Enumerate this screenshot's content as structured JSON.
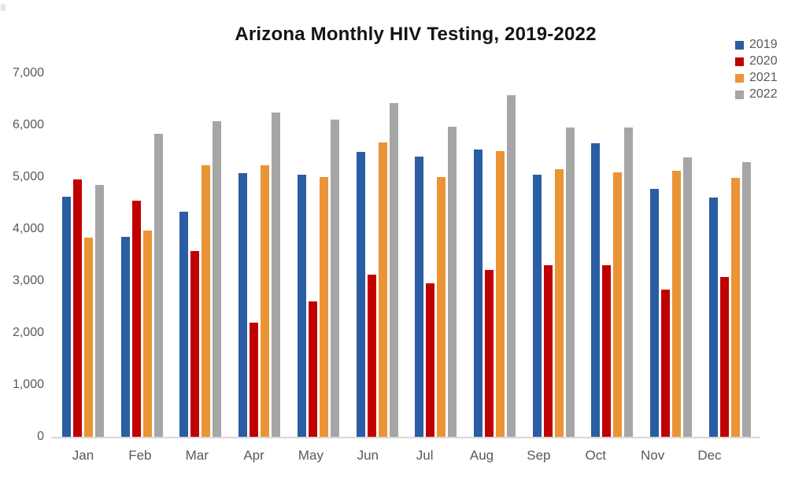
{
  "chart_data": {
    "type": "bar",
    "title": "Arizona Monthly HIV Testing, 2019-2022",
    "categories": [
      "Jan",
      "Feb",
      "Mar",
      "Apr",
      "May",
      "Jun",
      "Jul",
      "Aug",
      "Sep",
      "Oct",
      "Nov",
      "Dec"
    ],
    "series": [
      {
        "name": "2019",
        "color": "#2A5DA3",
        "values": [
          4620,
          3850,
          4330,
          5080,
          5050,
          5480,
          5390,
          5530,
          5050,
          5650,
          4770,
          4600
        ]
      },
      {
        "name": "2020",
        "color": "#C00000",
        "values": [
          4950,
          4550,
          3570,
          2190,
          2600,
          3120,
          2960,
          3210,
          3300,
          3310,
          2840,
          3070
        ]
      },
      {
        "name": "2021",
        "color": "#EB9435",
        "values": [
          3830,
          3970,
          5230,
          5220,
          5000,
          5660,
          5000,
          5500,
          5150,
          5090,
          5120,
          4990
        ]
      },
      {
        "name": "2022",
        "color": "#A6A6A6",
        "values": [
          4850,
          5840,
          6080,
          6240,
          6110,
          6430,
          5970,
          6570,
          5960,
          5960,
          5380,
          5290
        ]
      }
    ],
    "xlabel": "",
    "ylabel": "",
    "ylim": [
      0,
      7000
    ],
    "y_ticks": [
      {
        "value": 0,
        "label": "0"
      },
      {
        "value": 1000,
        "label": "1,000"
      },
      {
        "value": 2000,
        "label": "2,000"
      },
      {
        "value": 3000,
        "label": "3,000"
      },
      {
        "value": 4000,
        "label": "4,000"
      },
      {
        "value": 5000,
        "label": "5,000"
      },
      {
        "value": 6000,
        "label": "6,000"
      },
      {
        "value": 7000,
        "label": "7,000"
      }
    ],
    "grid": false,
    "legend_position": "top-right",
    "colors": {
      "axis_line": "#d9d9d9",
      "tick_text": "#595959",
      "title_text": "#141414",
      "background": "#ffffff"
    }
  }
}
